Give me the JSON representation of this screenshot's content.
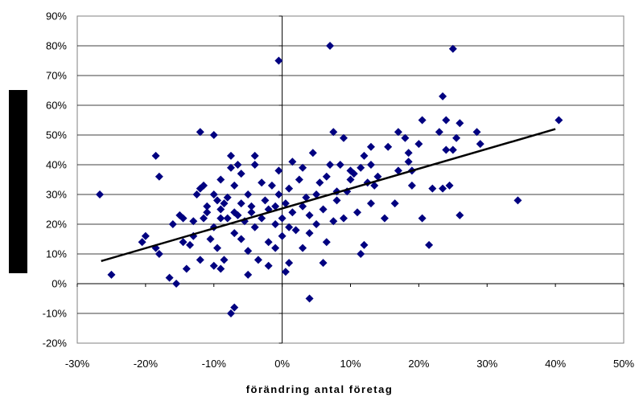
{
  "chart_data": {
    "type": "scatter",
    "xlabel": "förändring antal företag",
    "ylabel": "",
    "xlim": [
      -0.3,
      0.5
    ],
    "ylim": [
      -0.2,
      0.9
    ],
    "x_tick_labels": [
      "-30%",
      "-20%",
      "-10%",
      "0%",
      "10%",
      "20%",
      "30%",
      "40%",
      "50%"
    ],
    "y_tick_labels": [
      "-20%",
      "-10%",
      "0%",
      "10%",
      "20%",
      "30%",
      "40%",
      "50%",
      "60%",
      "70%",
      "80%",
      "90%"
    ],
    "grid": "horizontal",
    "marker": "diamond",
    "marker_color": "#000080",
    "trendline": {
      "type": "linear",
      "from": [
        -0.265,
        0.076
      ],
      "to": [
        0.4,
        0.52
      ],
      "color": "#000000"
    },
    "points": [
      [
        -0.267,
        0.3
      ],
      [
        -0.25,
        0.03
      ],
      [
        -0.2,
        0.16
      ],
      [
        -0.205,
        0.14
      ],
      [
        -0.185,
        0.43
      ],
      [
        -0.18,
        0.36
      ],
      [
        -0.185,
        0.12
      ],
      [
        -0.18,
        0.1
      ],
      [
        -0.165,
        0.02
      ],
      [
        -0.16,
        0.2
      ],
      [
        -0.155,
        0.0
      ],
      [
        -0.15,
        0.23
      ],
      [
        -0.145,
        0.22
      ],
      [
        -0.145,
        0.14
      ],
      [
        -0.14,
        0.05
      ],
      [
        -0.135,
        0.13
      ],
      [
        -0.13,
        0.21
      ],
      [
        -0.13,
        0.16
      ],
      [
        -0.125,
        0.3
      ],
      [
        -0.12,
        0.32
      ],
      [
        -0.12,
        0.51
      ],
      [
        -0.12,
        0.08
      ],
      [
        -0.115,
        0.22
      ],
      [
        -0.115,
        0.33
      ],
      [
        -0.11,
        0.24
      ],
      [
        -0.11,
        0.26
      ],
      [
        -0.105,
        0.15
      ],
      [
        -0.1,
        0.5
      ],
      [
        -0.1,
        0.3
      ],
      [
        -0.1,
        0.19
      ],
      [
        -0.1,
        0.06
      ],
      [
        -0.095,
        0.28
      ],
      [
        -0.095,
        0.12
      ],
      [
        -0.09,
        0.35
      ],
      [
        -0.09,
        0.25
      ],
      [
        -0.09,
        0.22
      ],
      [
        -0.09,
        0.05
      ],
      [
        -0.085,
        0.08
      ],
      [
        -0.085,
        0.27
      ],
      [
        -0.08,
        0.29
      ],
      [
        -0.08,
        0.22
      ],
      [
        -0.075,
        0.39
      ],
      [
        -0.075,
        0.43
      ],
      [
        -0.075,
        -0.1
      ],
      [
        -0.07,
        0.33
      ],
      [
        -0.07,
        0.24
      ],
      [
        -0.07,
        0.17
      ],
      [
        -0.07,
        -0.08
      ],
      [
        -0.065,
        0.4
      ],
      [
        -0.065,
        0.23
      ],
      [
        -0.06,
        0.37
      ],
      [
        -0.06,
        0.27
      ],
      [
        -0.06,
        0.15
      ],
      [
        -0.055,
        0.21
      ],
      [
        -0.05,
        0.3
      ],
      [
        -0.05,
        0.11
      ],
      [
        -0.05,
        0.03
      ],
      [
        -0.045,
        0.24
      ],
      [
        -0.045,
        0.26
      ],
      [
        -0.04,
        0.4
      ],
      [
        -0.04,
        0.43
      ],
      [
        -0.04,
        0.19
      ],
      [
        -0.035,
        0.08
      ],
      [
        -0.03,
        0.22
      ],
      [
        -0.03,
        0.34
      ],
      [
        -0.025,
        0.28
      ],
      [
        -0.02,
        0.25
      ],
      [
        -0.02,
        0.14
      ],
      [
        -0.02,
        0.06
      ],
      [
        -0.015,
        0.33
      ],
      [
        -0.01,
        0.26
      ],
      [
        -0.01,
        0.2
      ],
      [
        -0.01,
        0.12
      ],
      [
        -0.005,
        0.75
      ],
      [
        -0.005,
        0.38
      ],
      [
        -0.005,
        0.3
      ],
      [
        0.0,
        0.22
      ],
      [
        0.0,
        0.16
      ],
      [
        0.005,
        0.27
      ],
      [
        0.005,
        0.04
      ],
      [
        0.01,
        0.19
      ],
      [
        0.01,
        0.32
      ],
      [
        0.01,
        0.07
      ],
      [
        0.015,
        0.41
      ],
      [
        0.015,
        0.24
      ],
      [
        0.02,
        0.18
      ],
      [
        0.025,
        0.35
      ],
      [
        0.03,
        0.26
      ],
      [
        0.03,
        0.12
      ],
      [
        0.03,
        0.39
      ],
      [
        0.035,
        0.29
      ],
      [
        0.04,
        0.17
      ],
      [
        0.04,
        0.23
      ],
      [
        0.04,
        -0.05
      ],
      [
        0.045,
        0.44
      ],
      [
        0.05,
        0.3
      ],
      [
        0.05,
        0.2
      ],
      [
        0.055,
        0.34
      ],
      [
        0.06,
        0.25
      ],
      [
        0.06,
        0.07
      ],
      [
        0.065,
        0.36
      ],
      [
        0.065,
        0.14
      ],
      [
        0.07,
        0.8
      ],
      [
        0.07,
        0.4
      ],
      [
        0.075,
        0.51
      ],
      [
        0.075,
        0.21
      ],
      [
        0.08,
        0.31
      ],
      [
        0.08,
        0.28
      ],
      [
        0.085,
        0.4
      ],
      [
        0.09,
        0.49
      ],
      [
        0.09,
        0.22
      ],
      [
        0.095,
        0.31
      ],
      [
        0.1,
        0.38
      ],
      [
        0.1,
        0.35
      ],
      [
        0.105,
        0.37
      ],
      [
        0.11,
        0.24
      ],
      [
        0.115,
        0.39
      ],
      [
        0.115,
        0.1
      ],
      [
        0.12,
        0.43
      ],
      [
        0.12,
        0.13
      ],
      [
        0.125,
        0.34
      ],
      [
        0.13,
        0.46
      ],
      [
        0.13,
        0.4
      ],
      [
        0.13,
        0.27
      ],
      [
        0.135,
        0.33
      ],
      [
        0.14,
        0.36
      ],
      [
        0.15,
        0.22
      ],
      [
        0.155,
        0.46
      ],
      [
        0.165,
        0.27
      ],
      [
        0.17,
        0.51
      ],
      [
        0.17,
        0.38
      ],
      [
        0.18,
        0.49
      ],
      [
        0.185,
        0.44
      ],
      [
        0.185,
        0.41
      ],
      [
        0.19,
        0.33
      ],
      [
        0.19,
        0.38
      ],
      [
        0.2,
        0.47
      ],
      [
        0.205,
        0.55
      ],
      [
        0.205,
        0.22
      ],
      [
        0.215,
        0.13
      ],
      [
        0.22,
        0.32
      ],
      [
        0.23,
        0.51
      ],
      [
        0.235,
        0.63
      ],
      [
        0.235,
        0.32
      ],
      [
        0.24,
        0.55
      ],
      [
        0.24,
        0.45
      ],
      [
        0.245,
        0.33
      ],
      [
        0.25,
        0.79
      ],
      [
        0.25,
        0.45
      ],
      [
        0.255,
        0.49
      ],
      [
        0.26,
        0.23
      ],
      [
        0.26,
        0.54
      ],
      [
        0.285,
        0.51
      ],
      [
        0.29,
        0.47
      ],
      [
        0.345,
        0.28
      ],
      [
        0.405,
        0.55
      ]
    ]
  }
}
